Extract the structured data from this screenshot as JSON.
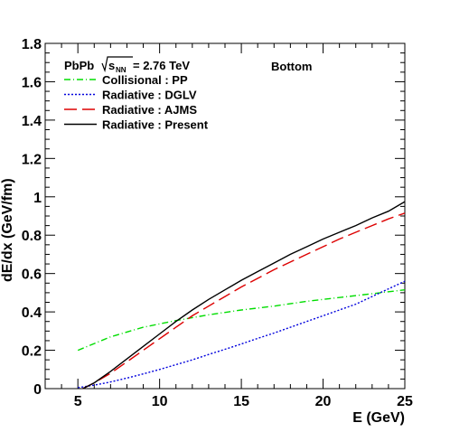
{
  "chart_data": {
    "type": "line",
    "xlabel": "E (GeV)",
    "ylabel": "dE/dx (GeV/fm)",
    "xlim": [
      3,
      25
    ],
    "ylim": [
      0,
      1.8
    ],
    "x_ticks": [
      5,
      10,
      15,
      20,
      25
    ],
    "x_tick_labels": [
      "5",
      "10",
      "15",
      "20",
      "25"
    ],
    "y_ticks": [
      0,
      0.2,
      0.4,
      0.6,
      0.8,
      1,
      1.2,
      1.4,
      1.6,
      1.8
    ],
    "y_tick_labels": [
      "0",
      "0.2",
      "0.4",
      "0.6",
      "0.8",
      "1",
      "1.2",
      "1.4",
      "1.6",
      "1.8"
    ],
    "grid": false,
    "legend_position": "top-left",
    "annotations": {
      "system": "PbPb",
      "energy": "= 2.76 TeV",
      "sqrt_s": "s",
      "sqrt_s_sub": "NN",
      "quark": "Bottom"
    },
    "series": [
      {
        "name": "Collisional : PP",
        "color": "#00dd00",
        "style": "dashdot",
        "x": [
          5,
          7,
          9,
          11,
          13,
          15,
          17,
          19,
          21,
          23,
          25
        ],
        "y": [
          0.2,
          0.27,
          0.32,
          0.355,
          0.385,
          0.41,
          0.43,
          0.455,
          0.475,
          0.495,
          0.515
        ]
      },
      {
        "name": "Radiative : DGLV",
        "color": "#0000dd",
        "style": "dotted",
        "x": [
          5,
          6,
          7,
          8,
          9,
          10,
          11,
          12,
          13,
          14,
          15,
          16,
          17,
          18,
          19,
          20,
          21,
          22,
          23,
          24,
          25
        ],
        "y": [
          0.005,
          0.018,
          0.035,
          0.055,
          0.077,
          0.1,
          0.125,
          0.15,
          0.178,
          0.205,
          0.233,
          0.262,
          0.29,
          0.32,
          0.35,
          0.38,
          0.41,
          0.44,
          0.48,
          0.52,
          0.56
        ]
      },
      {
        "name": "Radiative : AJMS",
        "color": "#dd0000",
        "style": "longdash",
        "x": [
          5.3,
          6,
          7,
          8,
          9,
          10,
          11,
          12,
          13,
          14,
          15,
          16,
          17,
          18,
          19,
          20,
          21,
          22,
          23,
          24,
          25
        ],
        "y": [
          0.0,
          0.03,
          0.08,
          0.14,
          0.2,
          0.26,
          0.32,
          0.38,
          0.43,
          0.48,
          0.53,
          0.575,
          0.62,
          0.66,
          0.7,
          0.74,
          0.78,
          0.815,
          0.85,
          0.885,
          0.915
        ]
      },
      {
        "name": "Radiative : Present",
        "color": "#000000",
        "style": "solid",
        "x": [
          5.3,
          6,
          7,
          8,
          9,
          10,
          11,
          12,
          13,
          14,
          15,
          16,
          17,
          18,
          19,
          20,
          21,
          22,
          23,
          24,
          25
        ],
        "y": [
          0.0,
          0.03,
          0.09,
          0.155,
          0.22,
          0.285,
          0.35,
          0.41,
          0.465,
          0.515,
          0.565,
          0.61,
          0.655,
          0.7,
          0.74,
          0.78,
          0.815,
          0.85,
          0.89,
          0.925,
          0.975
        ]
      }
    ]
  }
}
